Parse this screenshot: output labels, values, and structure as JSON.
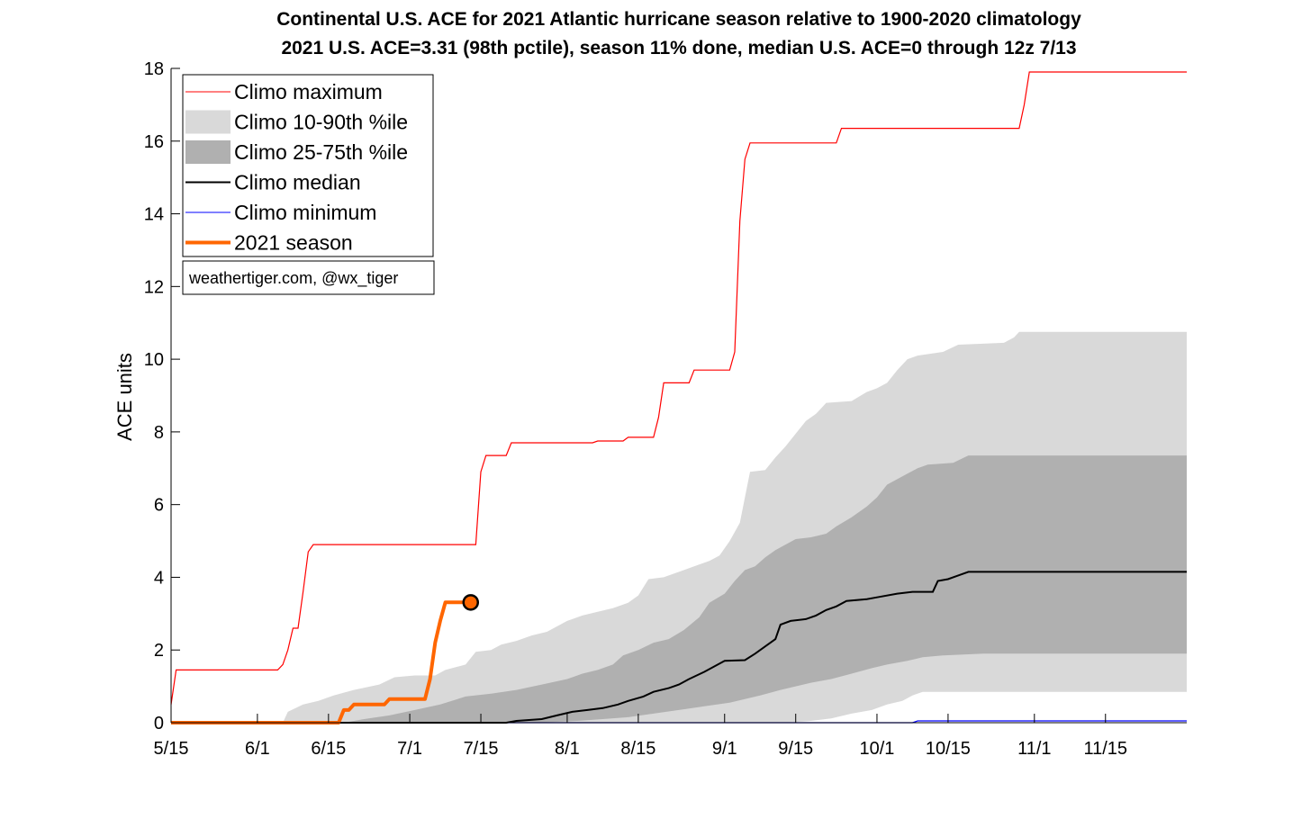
{
  "chart_data": {
    "type": "line",
    "title": "Continental U.S. ACE for 2021 Atlantic hurricane season relative to 1900-2020 climatology",
    "subtitle": "2021 U.S. ACE=3.31 (98th pctile), season 11% done, median U.S. ACE=0 through 12z 7/13",
    "ylabel": "ACE units",
    "xlabel": "",
    "x_domain_days": [
      0,
      200
    ],
    "ylim": [
      0,
      18
    ],
    "yticks": [
      0,
      2,
      4,
      6,
      8,
      10,
      12,
      14,
      16,
      18
    ],
    "xticks": [
      {
        "label": "5/15",
        "day": 0
      },
      {
        "label": "6/1",
        "day": 17
      },
      {
        "label": "6/15",
        "day": 31
      },
      {
        "label": "7/1",
        "day": 47
      },
      {
        "label": "7/15",
        "day": 61
      },
      {
        "label": "8/1",
        "day": 78
      },
      {
        "label": "8/15",
        "day": 92
      },
      {
        "label": "9/1",
        "day": 109
      },
      {
        "label": "9/15",
        "day": 123
      },
      {
        "label": "10/1",
        "day": 139
      },
      {
        "label": "10/15",
        "day": 153
      },
      {
        "label": "11/1",
        "day": 170
      },
      {
        "label": "11/15",
        "day": 184
      }
    ],
    "legend_location": "top-left",
    "legend": [
      {
        "label": "Climo maximum",
        "kind": "line",
        "color": "#ff0000",
        "width": 1
      },
      {
        "label": "Climo 10-90th %ile",
        "kind": "patch",
        "color": "#d9d9d9"
      },
      {
        "label": "Climo 25-75th %ile",
        "kind": "patch",
        "color": "#b0b0b0"
      },
      {
        "label": "Climo median",
        "kind": "line",
        "color": "#000000",
        "width": 2
      },
      {
        "label": "Climo minimum",
        "kind": "line",
        "color": "#0000ff",
        "width": 1
      },
      {
        "label": "2021 season",
        "kind": "line",
        "color": "#ff6600",
        "width": 4
      }
    ],
    "credit": "weathertiger.com, @wx_tiger",
    "colors": {
      "max": "#ff0000",
      "band_10_90": "#d9d9d9",
      "band_25_75": "#b0b0b0",
      "median": "#000000",
      "min": "#0000ff",
      "season": "#ff6600",
      "marker_fill": "#ff6600",
      "marker_edge": "#000000"
    },
    "series": {
      "max": [
        [
          0,
          0.5
        ],
        [
          1,
          1.45
        ],
        [
          21,
          1.45
        ],
        [
          22,
          1.6
        ],
        [
          23,
          2.0
        ],
        [
          24,
          2.6
        ],
        [
          25,
          2.6
        ],
        [
          26,
          3.6
        ],
        [
          27,
          4.7
        ],
        [
          28,
          4.9
        ],
        [
          60,
          4.9
        ],
        [
          61,
          6.9
        ],
        [
          62,
          7.35
        ],
        [
          66,
          7.35
        ],
        [
          67,
          7.7
        ],
        [
          83,
          7.7
        ],
        [
          84,
          7.75
        ],
        [
          89,
          7.75
        ],
        [
          90,
          7.85
        ],
        [
          95,
          7.85
        ],
        [
          96,
          8.4
        ],
        [
          97,
          9.35
        ],
        [
          102,
          9.35
        ],
        [
          103,
          9.7
        ],
        [
          110,
          9.7
        ],
        [
          111,
          10.2
        ],
        [
          112,
          13.8
        ],
        [
          113,
          15.5
        ],
        [
          114,
          15.95
        ],
        [
          131,
          15.95
        ],
        [
          132,
          16.35
        ],
        [
          167,
          16.35
        ],
        [
          168,
          17.0
        ],
        [
          169,
          17.9
        ],
        [
          200,
          17.9
        ]
      ],
      "p90": [
        [
          0,
          0
        ],
        [
          22,
          0
        ],
        [
          23,
          0.3
        ],
        [
          26,
          0.5
        ],
        [
          29,
          0.6
        ],
        [
          32,
          0.75
        ],
        [
          36,
          0.9
        ],
        [
          41,
          1.05
        ],
        [
          44,
          1.25
        ],
        [
          48,
          1.3
        ],
        [
          52,
          1.3
        ],
        [
          54,
          1.45
        ],
        [
          58,
          1.6
        ],
        [
          60,
          1.95
        ],
        [
          63,
          2.0
        ],
        [
          65,
          2.15
        ],
        [
          68,
          2.25
        ],
        [
          71,
          2.4
        ],
        [
          74,
          2.5
        ],
        [
          76,
          2.65
        ],
        [
          78,
          2.8
        ],
        [
          81,
          2.95
        ],
        [
          84,
          3.05
        ],
        [
          87,
          3.15
        ],
        [
          90,
          3.3
        ],
        [
          92,
          3.5
        ],
        [
          94,
          3.95
        ],
        [
          97,
          4.0
        ],
        [
          100,
          4.15
        ],
        [
          103,
          4.3
        ],
        [
          106,
          4.45
        ],
        [
          108,
          4.6
        ],
        [
          110,
          5.0
        ],
        [
          112,
          5.5
        ],
        [
          113,
          6.2
        ],
        [
          114,
          6.9
        ],
        [
          117,
          6.95
        ],
        [
          119,
          7.3
        ],
        [
          121,
          7.6
        ],
        [
          123,
          7.95
        ],
        [
          125,
          8.3
        ],
        [
          127,
          8.5
        ],
        [
          129,
          8.8
        ],
        [
          134,
          8.85
        ],
        [
          137,
          9.1
        ],
        [
          139,
          9.2
        ],
        [
          141,
          9.35
        ],
        [
          143,
          9.7
        ],
        [
          145,
          10.0
        ],
        [
          147,
          10.1
        ],
        [
          152,
          10.2
        ],
        [
          155,
          10.4
        ],
        [
          164,
          10.45
        ],
        [
          166,
          10.6
        ],
        [
          167,
          10.75
        ],
        [
          200,
          10.75
        ]
      ],
      "p75": [
        [
          0,
          0
        ],
        [
          34,
          0
        ],
        [
          38,
          0.1
        ],
        [
          43,
          0.2
        ],
        [
          48,
          0.35
        ],
        [
          53,
          0.5
        ],
        [
          58,
          0.72
        ],
        [
          63,
          0.8
        ],
        [
          68,
          0.9
        ],
        [
          73,
          1.05
        ],
        [
          78,
          1.2
        ],
        [
          81,
          1.35
        ],
        [
          84,
          1.45
        ],
        [
          87,
          1.6
        ],
        [
          89,
          1.85
        ],
        [
          92,
          2.0
        ],
        [
          95,
          2.2
        ],
        [
          98,
          2.3
        ],
        [
          101,
          2.55
        ],
        [
          104,
          2.9
        ],
        [
          106,
          3.3
        ],
        [
          109,
          3.55
        ],
        [
          111,
          3.9
        ],
        [
          113,
          4.2
        ],
        [
          115,
          4.3
        ],
        [
          117,
          4.55
        ],
        [
          119,
          4.75
        ],
        [
          121,
          4.9
        ],
        [
          123,
          5.05
        ],
        [
          126,
          5.1
        ],
        [
          129,
          5.2
        ],
        [
          131,
          5.4
        ],
        [
          134,
          5.65
        ],
        [
          137,
          5.95
        ],
        [
          139,
          6.2
        ],
        [
          141,
          6.55
        ],
        [
          143,
          6.7
        ],
        [
          145,
          6.85
        ],
        [
          147,
          7.0
        ],
        [
          149,
          7.1
        ],
        [
          154,
          7.15
        ],
        [
          157,
          7.35
        ],
        [
          200,
          7.35
        ]
      ],
      "median": [
        [
          0,
          0
        ],
        [
          66,
          0
        ],
        [
          68,
          0.05
        ],
        [
          73,
          0.1
        ],
        [
          76,
          0.2
        ],
        [
          79,
          0.3
        ],
        [
          82,
          0.35
        ],
        [
          85,
          0.4
        ],
        [
          88,
          0.5
        ],
        [
          90,
          0.6
        ],
        [
          93,
          0.72
        ],
        [
          95,
          0.85
        ],
        [
          98,
          0.95
        ],
        [
          100,
          1.05
        ],
        [
          102,
          1.2
        ],
        [
          105,
          1.4
        ],
        [
          107,
          1.55
        ],
        [
          109,
          1.7
        ],
        [
          113,
          1.72
        ],
        [
          115,
          1.9
        ],
        [
          117,
          2.1
        ],
        [
          119,
          2.3
        ],
        [
          120,
          2.7
        ],
        [
          122,
          2.8
        ],
        [
          125,
          2.85
        ],
        [
          127,
          2.95
        ],
        [
          129,
          3.1
        ],
        [
          131,
          3.2
        ],
        [
          133,
          3.35
        ],
        [
          137,
          3.4
        ],
        [
          139,
          3.45
        ],
        [
          143,
          3.55
        ],
        [
          146,
          3.6
        ],
        [
          150,
          3.6
        ],
        [
          151,
          3.9
        ],
        [
          153,
          3.95
        ],
        [
          155,
          4.05
        ],
        [
          157,
          4.15
        ],
        [
          200,
          4.15
        ]
      ],
      "p25": [
        [
          0,
          0
        ],
        [
          70,
          0
        ],
        [
          75,
          0.02
        ],
        [
          80,
          0.05
        ],
        [
          85,
          0.1
        ],
        [
          90,
          0.15
        ],
        [
          95,
          0.25
        ],
        [
          100,
          0.35
        ],
        [
          105,
          0.45
        ],
        [
          110,
          0.55
        ],
        [
          113,
          0.65
        ],
        [
          116,
          0.75
        ],
        [
          120,
          0.9
        ],
        [
          123,
          1.0
        ],
        [
          126,
          1.1
        ],
        [
          130,
          1.2
        ],
        [
          134,
          1.35
        ],
        [
          138,
          1.5
        ],
        [
          141,
          1.6
        ],
        [
          145,
          1.7
        ],
        [
          148,
          1.8
        ],
        [
          152,
          1.85
        ],
        [
          160,
          1.9
        ],
        [
          200,
          1.9
        ]
      ],
      "p10": [
        [
          0,
          0
        ],
        [
          120,
          0
        ],
        [
          123,
          0.02
        ],
        [
          126,
          0.05
        ],
        [
          130,
          0.12
        ],
        [
          134,
          0.25
        ],
        [
          138,
          0.35
        ],
        [
          141,
          0.5
        ],
        [
          144,
          0.6
        ],
        [
          146,
          0.75
        ],
        [
          148,
          0.85
        ],
        [
          200,
          0.85
        ]
      ],
      "min": [
        [
          0,
          0
        ],
        [
          146,
          0
        ],
        [
          147,
          0.05
        ],
        [
          200,
          0.05
        ]
      ],
      "season_2021": [
        [
          0,
          0
        ],
        [
          33,
          0
        ],
        [
          34,
          0.35
        ],
        [
          35,
          0.35
        ],
        [
          36,
          0.5
        ],
        [
          42,
          0.5
        ],
        [
          43,
          0.65
        ],
        [
          50,
          0.65
        ],
        [
          51,
          1.2
        ],
        [
          52,
          2.2
        ],
        [
          53,
          2.8
        ],
        [
          54,
          3.31
        ],
        [
          59,
          3.31
        ]
      ],
      "current_point": [
        59,
        3.31
      ]
    }
  }
}
